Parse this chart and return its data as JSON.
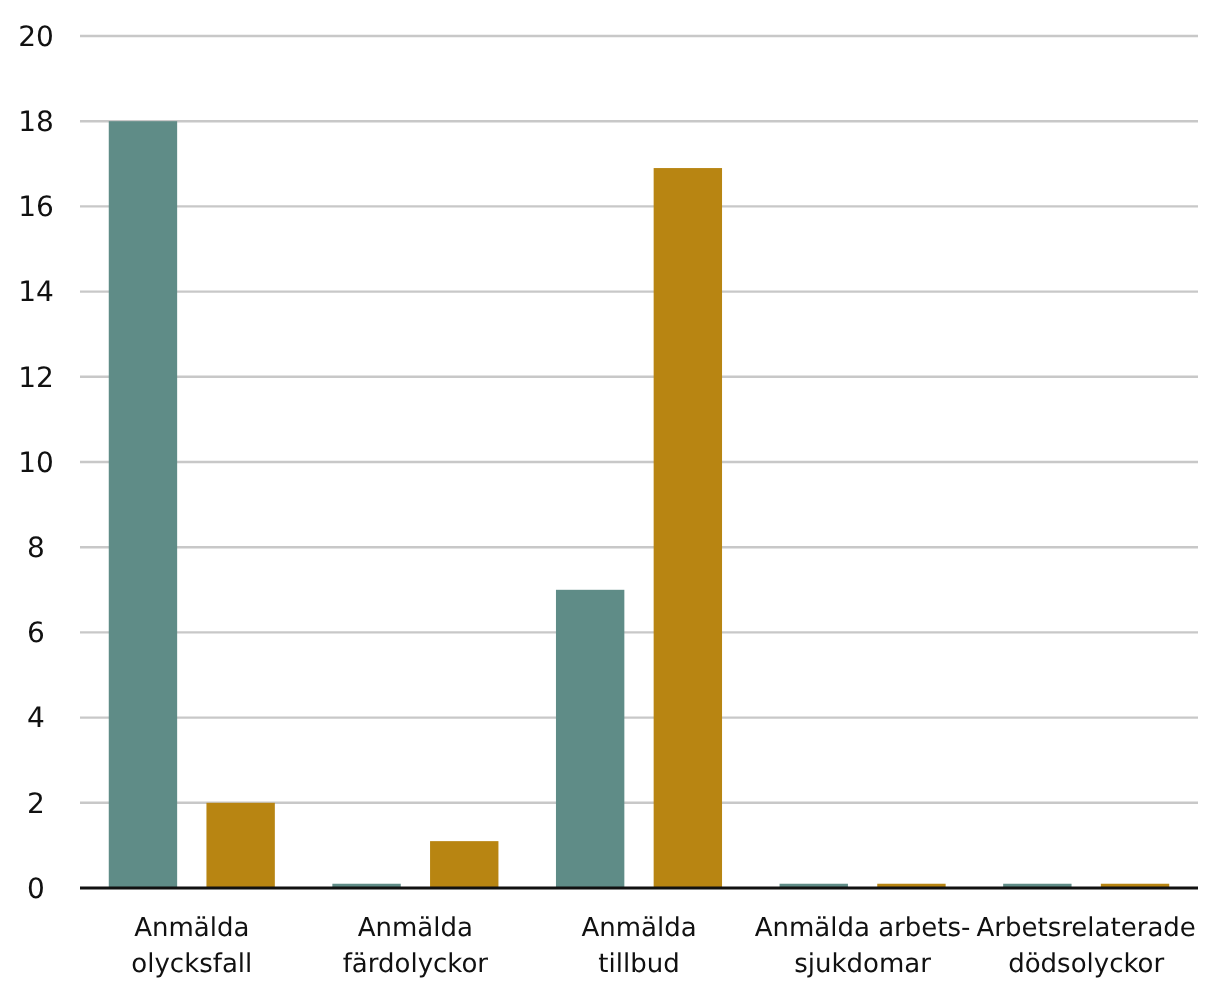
{
  "chart_data": {
    "type": "bar",
    "categories": [
      "Anmälda olycksfall",
      "Anmälda färdolyckor",
      "Anmälda tillbud",
      "Anmälda arbets-sjukdomar",
      "Arbetsrelaterade dödsolyckor"
    ],
    "series": [
      {
        "color": "#5f8c87",
        "values": [
          18,
          0.1,
          7,
          0.1,
          0.1
        ]
      },
      {
        "color": "#b88512",
        "values": [
          2,
          1.1,
          16.9,
          0.1,
          0.1
        ]
      }
    ],
    "ylim": [
      0,
      20
    ],
    "yticks": [
      0,
      2,
      4,
      6,
      8,
      10,
      12,
      14,
      16,
      18,
      20
    ],
    "grid": "y"
  }
}
